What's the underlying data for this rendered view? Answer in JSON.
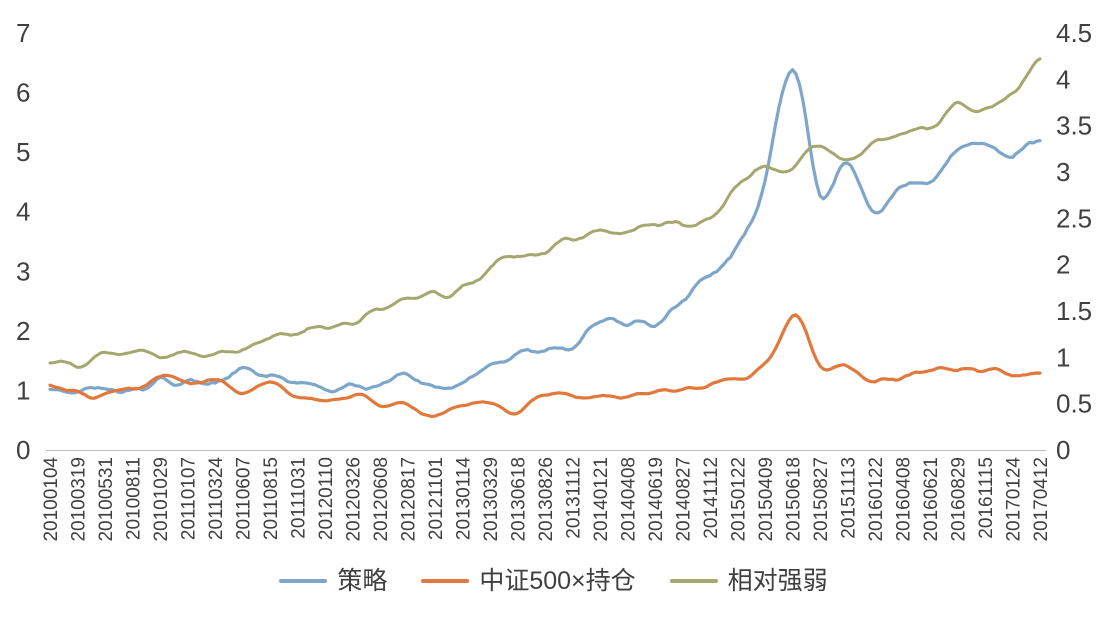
{
  "chart_data": {
    "type": "line",
    "title": "",
    "xlabel": "",
    "ylabel": "",
    "grid": false,
    "legend_position": "bottom",
    "axis_text_color": "#404040",
    "axis_line_color": "#BFBFBF",
    "categories": [
      "20100104",
      "20100319",
      "20100531",
      "20100811",
      "20101029",
      "20110107",
      "20110324",
      "20110607",
      "20110815",
      "20111031",
      "20120110",
      "20120326",
      "20120608",
      "20120817",
      "20121101",
      "20130114",
      "20130329",
      "20130618",
      "20130826",
      "20131112",
      "20140121",
      "20140408",
      "20140619",
      "20140827",
      "20141112",
      "20150122",
      "20150409",
      "20150618",
      "20150827",
      "20151113",
      "20160122",
      "20160408",
      "20160621",
      "20160829",
      "20161115",
      "20170124",
      "20170412"
    ],
    "left_axis": {
      "min": 0,
      "max": 7,
      "ticks": [
        "0",
        "1",
        "2",
        "3",
        "4",
        "5",
        "6",
        "7"
      ]
    },
    "right_axis": {
      "min": 0,
      "max": 4.5,
      "ticks": [
        "0",
        "0.5",
        "1",
        "1.5",
        "2",
        "2.5",
        "3",
        "3.5",
        "4",
        "4.5"
      ]
    },
    "series": [
      {
        "name": "策略",
        "color": "#7EA6CB",
        "axis": "left",
        "values": [
          1.0,
          1.02,
          0.95,
          1.0,
          1.15,
          1.18,
          1.17,
          1.25,
          1.22,
          1.1,
          0.97,
          1.15,
          1.13,
          1.16,
          1.06,
          1.22,
          1.45,
          1.62,
          1.72,
          1.85,
          2.18,
          2.02,
          2.1,
          2.45,
          2.9,
          3.35,
          4.5,
          6.45,
          4.25,
          4.8,
          4.15,
          4.4,
          4.5,
          4.9,
          5.1,
          4.95,
          5.3
        ]
      },
      {
        "name": "中证500×持仓",
        "color": "#E2793C",
        "axis": "left",
        "values": [
          1.0,
          0.97,
          0.87,
          1.0,
          1.2,
          1.08,
          1.18,
          1.05,
          1.02,
          0.9,
          0.76,
          0.86,
          0.8,
          0.76,
          0.68,
          0.74,
          0.8,
          0.74,
          0.84,
          0.88,
          0.86,
          0.86,
          0.9,
          1.0,
          1.08,
          1.18,
          1.45,
          2.28,
          1.4,
          1.45,
          1.2,
          1.25,
          1.3,
          1.35,
          1.35,
          1.35,
          1.27
        ]
      },
      {
        "name": "相对强弱",
        "color": "#A5A86E",
        "axis": "right",
        "values": [
          0.98,
          0.95,
          1.0,
          1.02,
          1.0,
          1.03,
          1.06,
          1.12,
          1.18,
          1.25,
          1.33,
          1.38,
          1.48,
          1.6,
          1.7,
          1.82,
          1.95,
          2.05,
          2.15,
          2.25,
          2.38,
          2.33,
          2.4,
          2.45,
          2.55,
          2.85,
          3.0,
          3.05,
          3.3,
          3.15,
          3.35,
          3.45,
          3.5,
          3.75,
          3.72,
          3.85,
          4.2
        ]
      }
    ]
  }
}
